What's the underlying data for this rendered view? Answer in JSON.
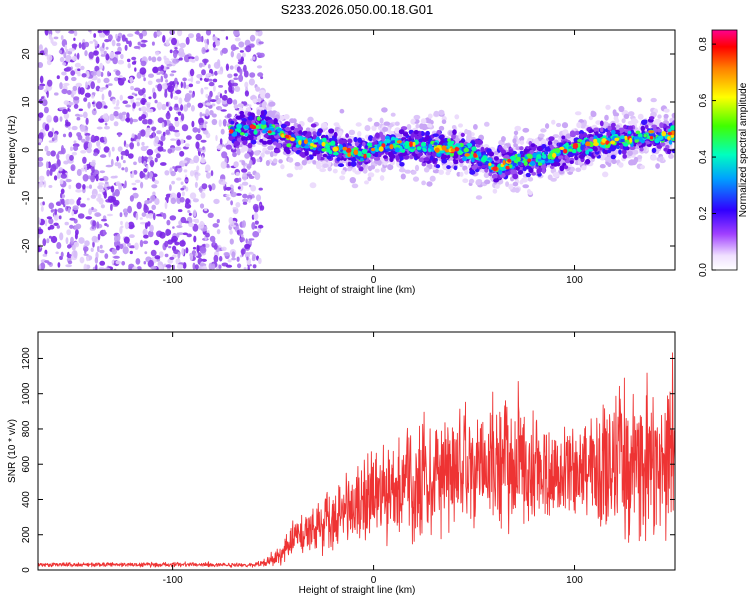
{
  "title": "S233.2026.050.00.18.G01",
  "colors": {
    "snr_line": "#ee3333",
    "scatter_low": "#c9a8f5",
    "scatter_mid": "#8a2be2",
    "scatter_core": "#5a00e0",
    "axis": "#000000"
  },
  "chart_data": [
    {
      "type": "scatter",
      "name": "spectrogram",
      "xlabel": "Height of straight line (km)",
      "ylabel": "Frequency (Hz)",
      "xlim": [
        -167,
        150
      ],
      "ylim": [
        -25,
        25
      ],
      "xticks": [
        -100,
        0,
        100
      ],
      "yticks": [
        20,
        10,
        0,
        -10,
        -20
      ],
      "xtick_labels": [
        "-100",
        "0",
        "100"
      ],
      "ytick_labels": [
        "20",
        "10",
        "0",
        "-10",
        "-20"
      ],
      "noise_region_x": [
        -167,
        -55
      ],
      "signal_track": {
        "x": [
          -72,
          -65,
          -55,
          -45,
          -35,
          -25,
          -15,
          -5,
          5,
          15,
          25,
          35,
          45,
          55,
          60,
          65,
          75,
          85,
          95,
          105,
          115,
          125,
          135,
          150
        ],
        "y": [
          4,
          4.5,
          5,
          3,
          1.5,
          1,
          0,
          -1,
          1,
          1,
          0.5,
          0.5,
          0,
          -2,
          -4,
          -3,
          -2,
          -2,
          0,
          1,
          2,
          2,
          3,
          3
        ]
      },
      "colorbar": {
        "label": "Normalized spectral amplitude",
        "range": [
          0,
          0.85
        ],
        "ticks": [
          0.0,
          0.2,
          0.4,
          0.6,
          0.8
        ],
        "tick_labels": [
          "0.0",
          "0.2",
          "0.4",
          "0.6",
          "0.8"
        ]
      }
    },
    {
      "type": "line",
      "name": "snr",
      "xlabel": "Height of straight line (km)",
      "ylabel": "SNR (10 * v/v)",
      "xlim": [
        -167,
        150
      ],
      "ylim": [
        0,
        1350
      ],
      "xticks": [
        -100,
        0,
        100
      ],
      "yticks": [
        0,
        200,
        400,
        600,
        800,
        1000,
        1200
      ],
      "xtick_labels": [
        "-100",
        "0",
        "100"
      ],
      "ytick_labels": [
        "0",
        "200",
        "400",
        "600",
        "800",
        "1000",
        "1200"
      ],
      "envelope": {
        "x": [
          -167,
          -60,
          -52,
          -45,
          -40,
          -35,
          -30,
          -20,
          -10,
          0,
          10,
          20,
          30,
          40,
          50,
          60,
          70,
          80,
          90,
          95,
          100,
          110,
          120,
          130,
          140,
          150
        ],
        "mean": [
          30,
          30,
          45,
          90,
          180,
          200,
          240,
          300,
          350,
          400,
          450,
          500,
          550,
          570,
          580,
          600,
          580,
          560,
          550,
          540,
          540,
          580,
          600,
          620,
          600,
          580
        ],
        "spread": [
          15,
          15,
          30,
          80,
          120,
          140,
          180,
          220,
          260,
          300,
          330,
          360,
          380,
          400,
          410,
          420,
          400,
          380,
          300,
          260,
          300,
          450,
          500,
          560,
          550,
          500
        ]
      }
    }
  ]
}
